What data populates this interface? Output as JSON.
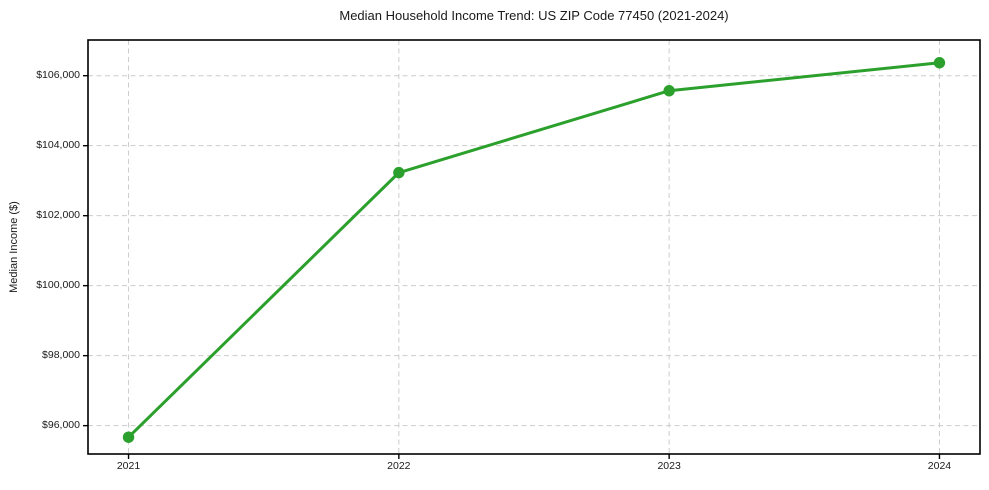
{
  "chart_data": {
    "type": "line",
    "title": "Median Household Income Trend: US ZIP Code 77450 (2021-2024)",
    "xlabel": "",
    "ylabel": "Median Income ($)",
    "x": [
      2021,
      2022,
      2023,
      2024
    ],
    "values": [
      95670,
      103230,
      105570,
      106370
    ],
    "xtick_labels": [
      "2021",
      "2022",
      "2023",
      "2024"
    ],
    "ytick_values": [
      96000,
      98000,
      100000,
      102000,
      104000,
      106000
    ],
    "ytick_labels": [
      "$96,000",
      "$98,000",
      "$100,000",
      "$102,000",
      "$104,000",
      "$106,000"
    ],
    "xlim": [
      2020.85,
      2024.15
    ],
    "ylim": [
      95190,
      107020
    ],
    "grid": true,
    "legend_position": "none",
    "marker": "circle",
    "line_color": "#2ca02c",
    "grid_color": "#cccccc",
    "axis_color": "#000000",
    "text_color": "#1a1a1a",
    "background_color": "#ffffff"
  }
}
